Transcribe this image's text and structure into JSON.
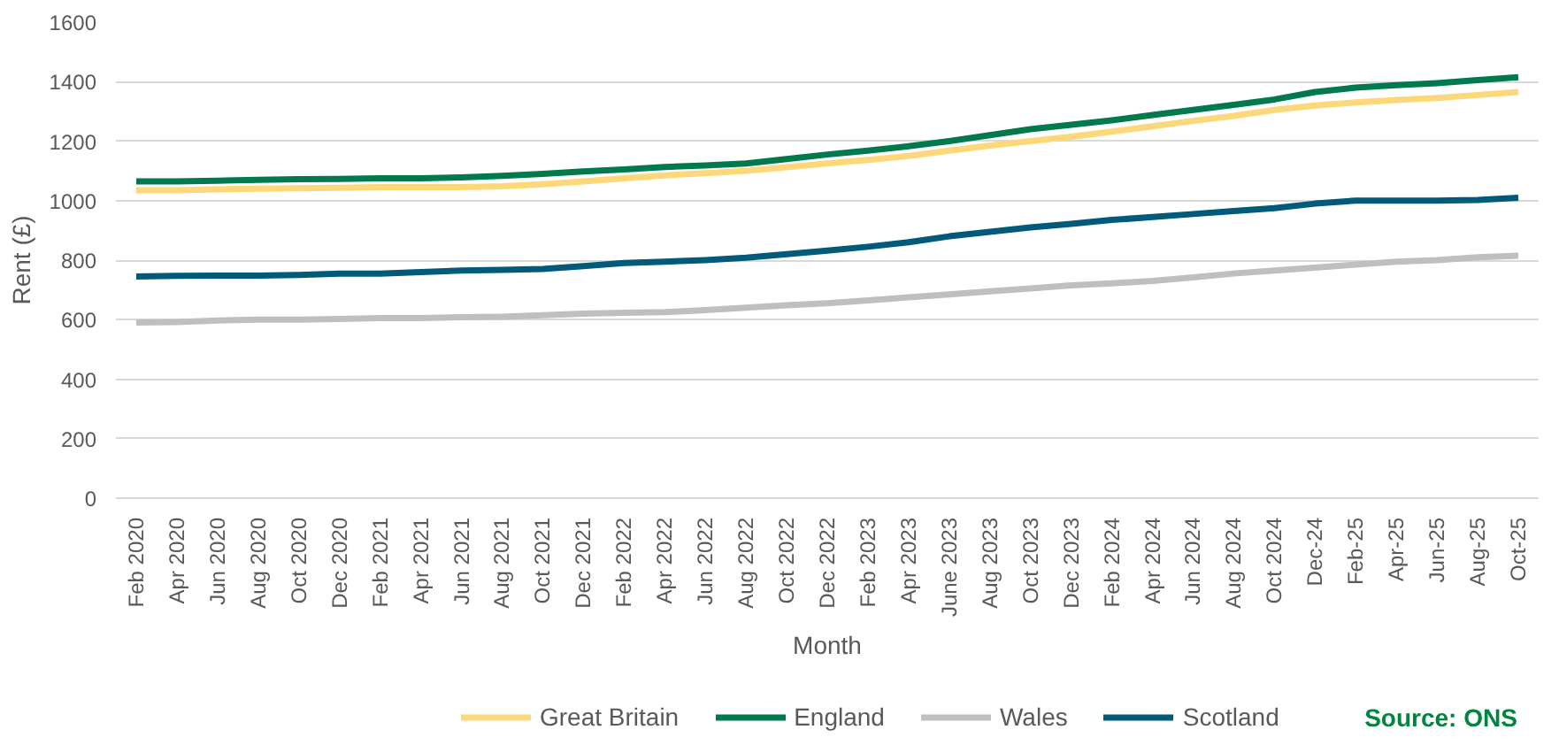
{
  "chart_data": {
    "type": "line",
    "xlabel": "Month",
    "ylabel": "Rent (£)",
    "categories": [
      "Feb 2020",
      "Apr 2020",
      "Jun 2020",
      "Aug 2020",
      "Oct 2020",
      "Dec 2020",
      "Feb 2021",
      "Apr 2021",
      "Jun 2021",
      "Aug 2021",
      "Oct 2021",
      "Dec 2021",
      "Feb 2022",
      "Apr 2022",
      "Jun 2022",
      "Aug 2022",
      "Oct 2022",
      "Dec 2022",
      "Feb 2023",
      "Apr 2023",
      "June 2023",
      "Aug 2023",
      "Oct 2023",
      "Dec 2023",
      "Feb 2024",
      "Apr 2024",
      "Jun 2024",
      "Aug 2024",
      "Oct 2024",
      "Dec-24",
      "Feb-25",
      "Apr-25",
      "Jun-25",
      "Aug-25",
      "Oct-25"
    ],
    "series": [
      {
        "name": "Great Britain",
        "color": "#fdd87a",
        "values": [
          1035,
          1035,
          1038,
          1040,
          1042,
          1043,
          1045,
          1045,
          1045,
          1048,
          1055,
          1065,
          1075,
          1085,
          1092,
          1100,
          1112,
          1125,
          1137,
          1150,
          1168,
          1185,
          1200,
          1215,
          1232,
          1250,
          1268,
          1285,
          1305,
          1320,
          1330,
          1338,
          1345,
          1355,
          1365
        ]
      },
      {
        "name": "England",
        "color": "#007a4d",
        "values": [
          1065,
          1065,
          1067,
          1070,
          1072,
          1073,
          1075,
          1075,
          1078,
          1083,
          1090,
          1098,
          1105,
          1113,
          1118,
          1125,
          1140,
          1155,
          1168,
          1183,
          1200,
          1220,
          1240,
          1255,
          1270,
          1288,
          1305,
          1322,
          1340,
          1365,
          1380,
          1388,
          1395,
          1405,
          1415
        ]
      },
      {
        "name": "Wales",
        "color": "#bfbfbf",
        "values": [
          590,
          592,
          597,
          600,
          600,
          602,
          605,
          605,
          608,
          610,
          615,
          620,
          623,
          625,
          632,
          640,
          648,
          655,
          665,
          675,
          685,
          695,
          705,
          715,
          722,
          730,
          742,
          755,
          765,
          775,
          785,
          795,
          800,
          810,
          815
        ]
      },
      {
        "name": "Scotland",
        "color": "#005a7a",
        "values": [
          745,
          747,
          748,
          748,
          750,
          755,
          755,
          760,
          765,
          767,
          770,
          780,
          790,
          795,
          800,
          808,
          820,
          832,
          845,
          860,
          880,
          895,
          910,
          922,
          935,
          945,
          955,
          965,
          975,
          990,
          1000,
          1000,
          1000,
          1002,
          1010
        ]
      }
    ],
    "ylim": [
      0,
      1600
    ],
    "yticks": [
      0,
      200,
      400,
      600,
      800,
      1000,
      1200,
      1400,
      1600
    ],
    "grid": "y",
    "legend": "bottom",
    "line_style": "solid",
    "marker": "none",
    "annotations": [
      "Source: ONS"
    ]
  }
}
